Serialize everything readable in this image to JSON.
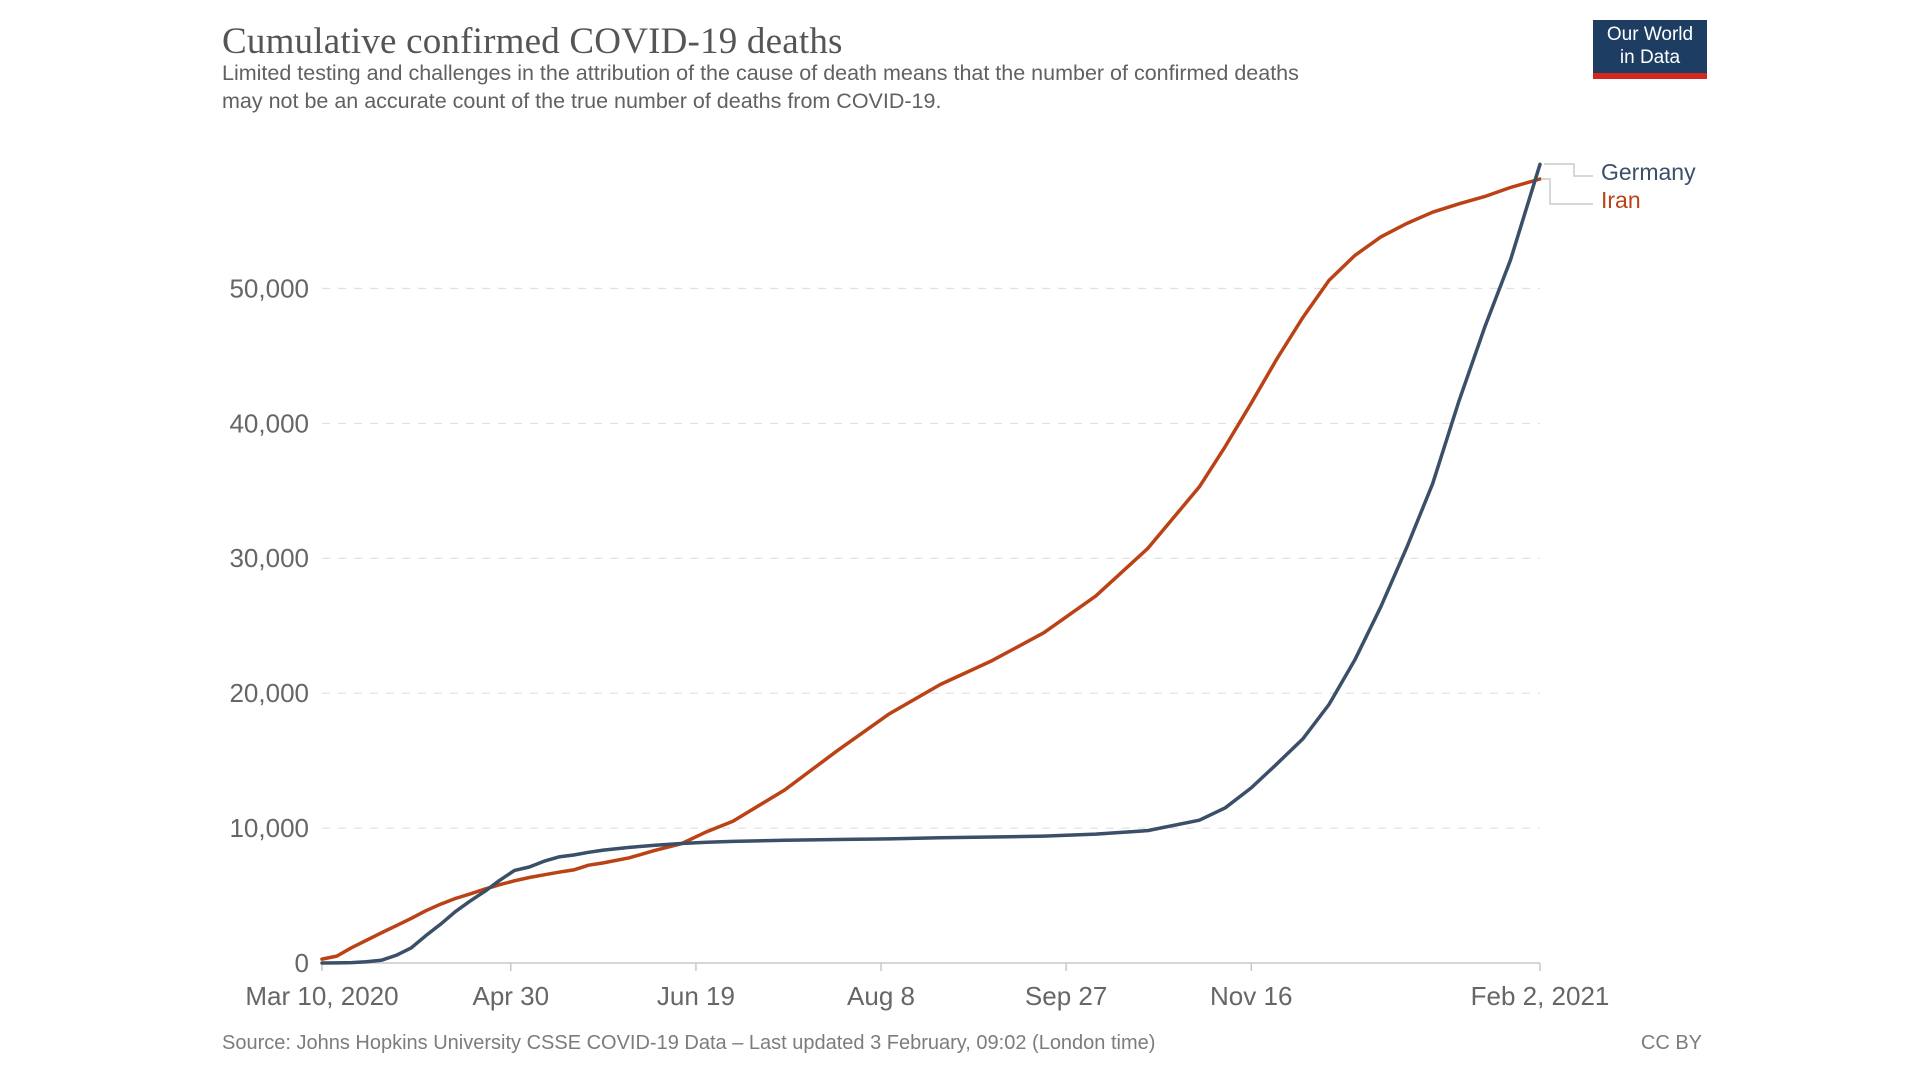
{
  "header": {
    "title": "Cumulative confirmed COVID-19 deaths",
    "subtitle": "Limited testing and challenges in the attribution of the cause of death means that the number of confirmed deaths may not be an accurate count of the true number of deaths from COVID-19."
  },
  "logo": {
    "line1": "Our World",
    "line2": "in Data"
  },
  "legend": [
    {
      "label": "Germany",
      "color": "#3a4f68"
    },
    {
      "label": "Iran",
      "color": "#bb4215"
    }
  ],
  "footer": {
    "source": "Source: Johns Hopkins University CSSE COVID-19 Data – Last updated 3 February, 09:02 (London time)",
    "license": "CC BY"
  },
  "chart_data": {
    "type": "line",
    "title": "Cumulative confirmed COVID-19 deaths",
    "xlabel": "",
    "ylabel": "",
    "grid": "horizontal-dashed",
    "legend_position": "right-of-line-ends",
    "x_axis": {
      "start": "2020-03-10",
      "end": "2021-02-02",
      "ticks": [
        {
          "date": "2020-03-10",
          "label": "Mar 10, 2020"
        },
        {
          "date": "2020-04-30",
          "label": "Apr 30"
        },
        {
          "date": "2020-06-19",
          "label": "Jun 19"
        },
        {
          "date": "2020-08-08",
          "label": "Aug 8"
        },
        {
          "date": "2020-09-27",
          "label": "Sep 27"
        },
        {
          "date": "2020-11-16",
          "label": "Nov 16"
        },
        {
          "date": "2021-02-02",
          "label": "Feb 2, 2021"
        }
      ]
    },
    "y_axis": {
      "min": 0,
      "max": 61000,
      "ticks": [
        {
          "value": 0,
          "label": "0"
        },
        {
          "value": 10000,
          "label": "10,000"
        },
        {
          "value": 20000,
          "label": "20,000"
        },
        {
          "value": 30000,
          "label": "30,000"
        },
        {
          "value": 40000,
          "label": "40,000"
        },
        {
          "value": 50000,
          "label": "50,000"
        }
      ]
    },
    "series": [
      {
        "name": "Iran",
        "color": "#bb4215",
        "points": [
          [
            "2020-03-10",
            291
          ],
          [
            "2020-03-14",
            514
          ],
          [
            "2020-03-18",
            1135
          ],
          [
            "2020-03-22",
            1685
          ],
          [
            "2020-03-26",
            2234
          ],
          [
            "2020-03-30",
            2757
          ],
          [
            "2020-04-03",
            3294
          ],
          [
            "2020-04-07",
            3872
          ],
          [
            "2020-04-11",
            4357
          ],
          [
            "2020-04-15",
            4777
          ],
          [
            "2020-04-19",
            5118
          ],
          [
            "2020-04-23",
            5481
          ],
          [
            "2020-04-27",
            5806
          ],
          [
            "2020-05-01",
            6091
          ],
          [
            "2020-05-05",
            6340
          ],
          [
            "2020-05-09",
            6541
          ],
          [
            "2020-05-13",
            6733
          ],
          [
            "2020-05-17",
            6902
          ],
          [
            "2020-05-21",
            7249
          ],
          [
            "2020-05-25",
            7417
          ],
          [
            "2020-06-01",
            7797
          ],
          [
            "2020-06-08",
            8351
          ],
          [
            "2020-06-15",
            8837
          ],
          [
            "2020-06-22",
            9742
          ],
          [
            "2020-06-29",
            10508
          ],
          [
            "2020-07-13",
            12829
          ],
          [
            "2020-07-27",
            15700
          ],
          [
            "2020-08-10",
            18427
          ],
          [
            "2020-08-24",
            20643
          ],
          [
            "2020-09-07",
            22410
          ],
          [
            "2020-09-21",
            24478
          ],
          [
            "2020-10-05",
            27192
          ],
          [
            "2020-10-19",
            30712
          ],
          [
            "2020-11-02",
            35298
          ],
          [
            "2020-11-09",
            38291
          ],
          [
            "2020-11-16",
            41493
          ],
          [
            "2020-11-23",
            44802
          ],
          [
            "2020-11-30",
            47874
          ],
          [
            "2020-12-07",
            50594
          ],
          [
            "2020-12-14",
            52447
          ],
          [
            "2020-12-21",
            53816
          ],
          [
            "2020-12-28",
            54814
          ],
          [
            "2021-01-04",
            55650
          ],
          [
            "2021-01-11",
            56262
          ],
          [
            "2021-01-18",
            56803
          ],
          [
            "2021-01-25",
            57481
          ],
          [
            "2021-02-02",
            58110
          ]
        ]
      },
      {
        "name": "Germany",
        "color": "#3a4f68",
        "points": [
          [
            "2020-03-10",
            2
          ],
          [
            "2020-03-14",
            8
          ],
          [
            "2020-03-18",
            28
          ],
          [
            "2020-03-22",
            94
          ],
          [
            "2020-03-26",
            198
          ],
          [
            "2020-03-30",
            560
          ],
          [
            "2020-04-03",
            1107
          ],
          [
            "2020-04-07",
            2016
          ],
          [
            "2020-04-11",
            2871
          ],
          [
            "2020-04-15",
            3804
          ],
          [
            "2020-04-19",
            4586
          ],
          [
            "2020-04-23",
            5315
          ],
          [
            "2020-04-27",
            6126
          ],
          [
            "2020-05-01",
            6866
          ],
          [
            "2020-05-05",
            7119
          ],
          [
            "2020-05-09",
            7549
          ],
          [
            "2020-05-13",
            7861
          ],
          [
            "2020-05-17",
            8003
          ],
          [
            "2020-05-21",
            8203
          ],
          [
            "2020-05-25",
            8371
          ],
          [
            "2020-06-01",
            8570
          ],
          [
            "2020-06-08",
            8729
          ],
          [
            "2020-06-15",
            8856
          ],
          [
            "2020-06-22",
            8948
          ],
          [
            "2020-06-29",
            9012
          ],
          [
            "2020-07-13",
            9095
          ],
          [
            "2020-07-27",
            9154
          ],
          [
            "2020-08-10",
            9201
          ],
          [
            "2020-08-24",
            9277
          ],
          [
            "2020-09-07",
            9336
          ],
          [
            "2020-09-21",
            9409
          ],
          [
            "2020-10-05",
            9554
          ],
          [
            "2020-10-19",
            9810
          ],
          [
            "2020-11-02",
            10583
          ],
          [
            "2020-11-09",
            11506
          ],
          [
            "2020-11-16",
            12979
          ],
          [
            "2020-11-23",
            14771
          ],
          [
            "2020-11-30",
            16636
          ],
          [
            "2020-12-07",
            19159
          ],
          [
            "2020-12-14",
            22475
          ],
          [
            "2020-12-21",
            26401
          ],
          [
            "2020-12-28",
            30791
          ],
          [
            "2021-01-04",
            35518
          ],
          [
            "2021-01-11",
            41577
          ],
          [
            "2021-01-18",
            47082
          ],
          [
            "2021-01-25",
            52087
          ],
          [
            "2021-02-02",
            59200
          ]
        ]
      }
    ]
  }
}
